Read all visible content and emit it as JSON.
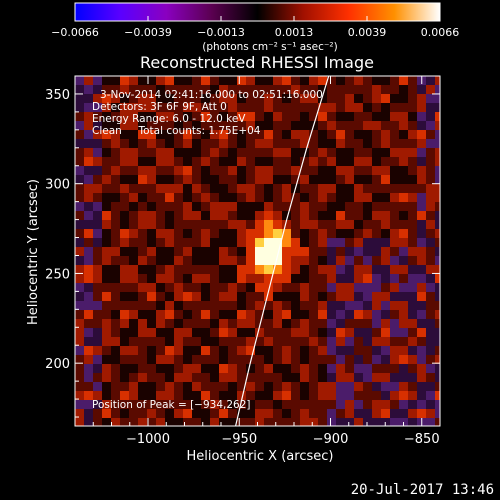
{
  "chart_data": {
    "type": "heatmap",
    "title": "Reconstructed RHESSI Image",
    "xlabel": "Heliocentric X (arcsec)",
    "ylabel": "Heliocentric Y (arcsec)",
    "xlim": [
      -1040,
      -840
    ],
    "ylim": [
      165,
      360
    ],
    "xticks": [
      -1000,
      -950,
      -900,
      -850
    ],
    "yticks": [
      200,
      250,
      300,
      350
    ],
    "xtick_labels": [
      "−1000",
      "−950",
      "−900",
      "−850"
    ],
    "ytick_labels": [
      "200",
      "250",
      "300",
      "350"
    ],
    "colorbar": {
      "min": -0.0066,
      "max": 0.0066,
      "ticks": [
        "−0.0066",
        "−0.0039",
        "−0.0013",
        "0.0013",
        "0.0039",
        "0.0066"
      ],
      "unit_label": "(photons cm⁻² s⁻¹ asec⁻²)"
    },
    "peak": {
      "x": -934,
      "y": 262
    },
    "limb_points": [
      [
        -952,
        165
      ],
      [
        -944,
        200
      ],
      [
        -934,
        240
      ],
      [
        -924,
        280
      ],
      [
        -913,
        320
      ],
      [
        -901,
        360
      ]
    ],
    "annotations": [
      "3-Nov-2014 02:41:16.000 to 02:51:16.000",
      "Detectors: 3F 6F 9F, Att 0",
      "Energy Range: 6.0 - 12.0 keV",
      "Clean     Total counts: 1.75E+04"
    ],
    "peak_label": "Position of Peak = [−934,262]"
  },
  "colors": {
    "background": "#000000",
    "colorbar_stops": [
      "#0000ff",
      "#5a00ff",
      "#8a00c0",
      "#5a0050",
      "#000000",
      "#a01000",
      "#ff3000",
      "#ff9000",
      "#ffffff"
    ]
  },
  "footer": {
    "date": "20-Jul-2017 13:46"
  }
}
